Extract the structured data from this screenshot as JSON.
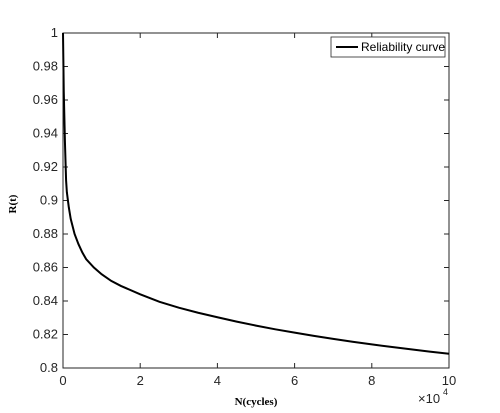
{
  "chart_data": {
    "type": "line",
    "title": "",
    "xlabel": "N(cycles)",
    "ylabel": "R(t)",
    "x_exponent_label": {
      "base": "×10",
      "power": "4"
    },
    "xlim": [
      0,
      10
    ],
    "ylim": [
      0.8,
      1
    ],
    "xticks": [
      "0",
      "2",
      "4",
      "6",
      "8",
      "10"
    ],
    "yticks": [
      "0.8",
      "0.82",
      "0.84",
      "0.86",
      "0.88",
      "0.9",
      "0.92",
      "0.94",
      "0.96",
      "0.98",
      "1"
    ],
    "grid": false,
    "legend_position": "top-right",
    "series": [
      {
        "name": "Reliability curve",
        "color": "#000000",
        "x": [
          0,
          0.02,
          0.05,
          0.08,
          0.1,
          0.15,
          0.2,
          0.3,
          0.4,
          0.5,
          0.6,
          0.8,
          1.0,
          1.25,
          1.5,
          2.0,
          2.5,
          3.0,
          3.5,
          4.0,
          4.5,
          5.0,
          5.5,
          6.0,
          6.5,
          7.0,
          7.5,
          8.0,
          8.5,
          9.0,
          9.5,
          10.0
        ],
        "y": [
          1.0,
          0.965,
          0.935,
          0.912,
          0.905,
          0.896,
          0.889,
          0.88,
          0.874,
          0.869,
          0.865,
          0.86,
          0.856,
          0.852,
          0.849,
          0.844,
          0.8395,
          0.836,
          0.833,
          0.8303,
          0.8277,
          0.8253,
          0.8231,
          0.8211,
          0.8192,
          0.8174,
          0.8157,
          0.8141,
          0.8126,
          0.8112,
          0.8098,
          0.8085
        ]
      }
    ]
  }
}
